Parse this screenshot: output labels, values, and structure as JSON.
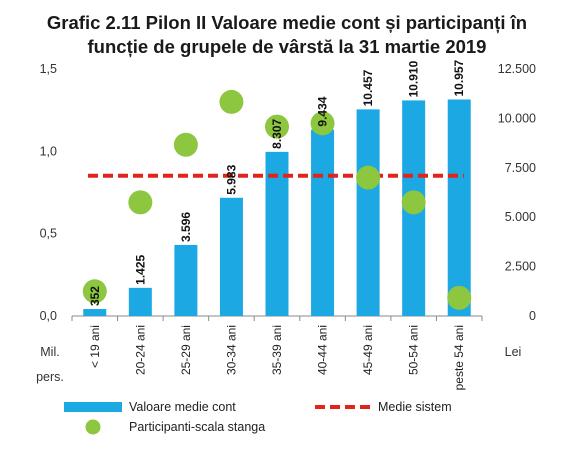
{
  "chart_data": {
    "type": "bar",
    "title_line1": "Grafic 2.11 Pilon II Valoare medie cont și participanți în",
    "title_line2": "funcție de grupele de vârstă la 31 martie 2019",
    "categories": [
      "< 19 ani",
      "20-24 ani",
      "25-29 ani",
      "30-34 ani",
      "35-39 ani",
      "40-44 ani",
      "45-49 ani",
      "50-54 ani",
      "peste 54 ani"
    ],
    "series": [
      {
        "name": "Valoare medie cont",
        "axis": "right",
        "type": "bar",
        "color": "#1CA8E3",
        "values": [
          352,
          1425,
          3596,
          5983,
          8307,
          9434,
          10457,
          10910,
          10957
        ],
        "labels": [
          "352",
          "1.425",
          "3.596",
          "5.983",
          "8.307",
          "9.434",
          "10.457",
          "10.910",
          "10.957"
        ]
      },
      {
        "name": "Participanti-scala stanga",
        "axis": "left",
        "type": "scatter",
        "color": "#8DC63F",
        "values": [
          0.15,
          0.69,
          1.04,
          1.3,
          1.15,
          1.17,
          0.84,
          0.69,
          0.11
        ]
      },
      {
        "name": "Medie sistem",
        "axis": "right",
        "type": "line",
        "style": "dashed",
        "color": "#E2231A",
        "value": 7100
      }
    ],
    "left_axis": {
      "unit_line1": "Mil.",
      "unit_line2": "pers.",
      "ylim": [
        0,
        1.5
      ],
      "ticks": [
        0,
        0.5,
        1.0,
        1.5
      ],
      "tick_labels": [
        "0,0",
        "0,5",
        "1,0",
        "1,5"
      ]
    },
    "right_axis": {
      "unit": "Lei",
      "ylim": [
        0,
        12500
      ],
      "ticks": [
        0,
        2500,
        5000,
        7500,
        10000,
        12500
      ],
      "tick_labels": [
        "0",
        "2.500",
        "5.000",
        "7.500",
        "10.000",
        "12.500"
      ]
    },
    "grid": false,
    "legend": {
      "placement": "bottom",
      "items": [
        "Valoare medie cont",
        "Medie sistem",
        "Participanti-scala stanga"
      ]
    }
  }
}
